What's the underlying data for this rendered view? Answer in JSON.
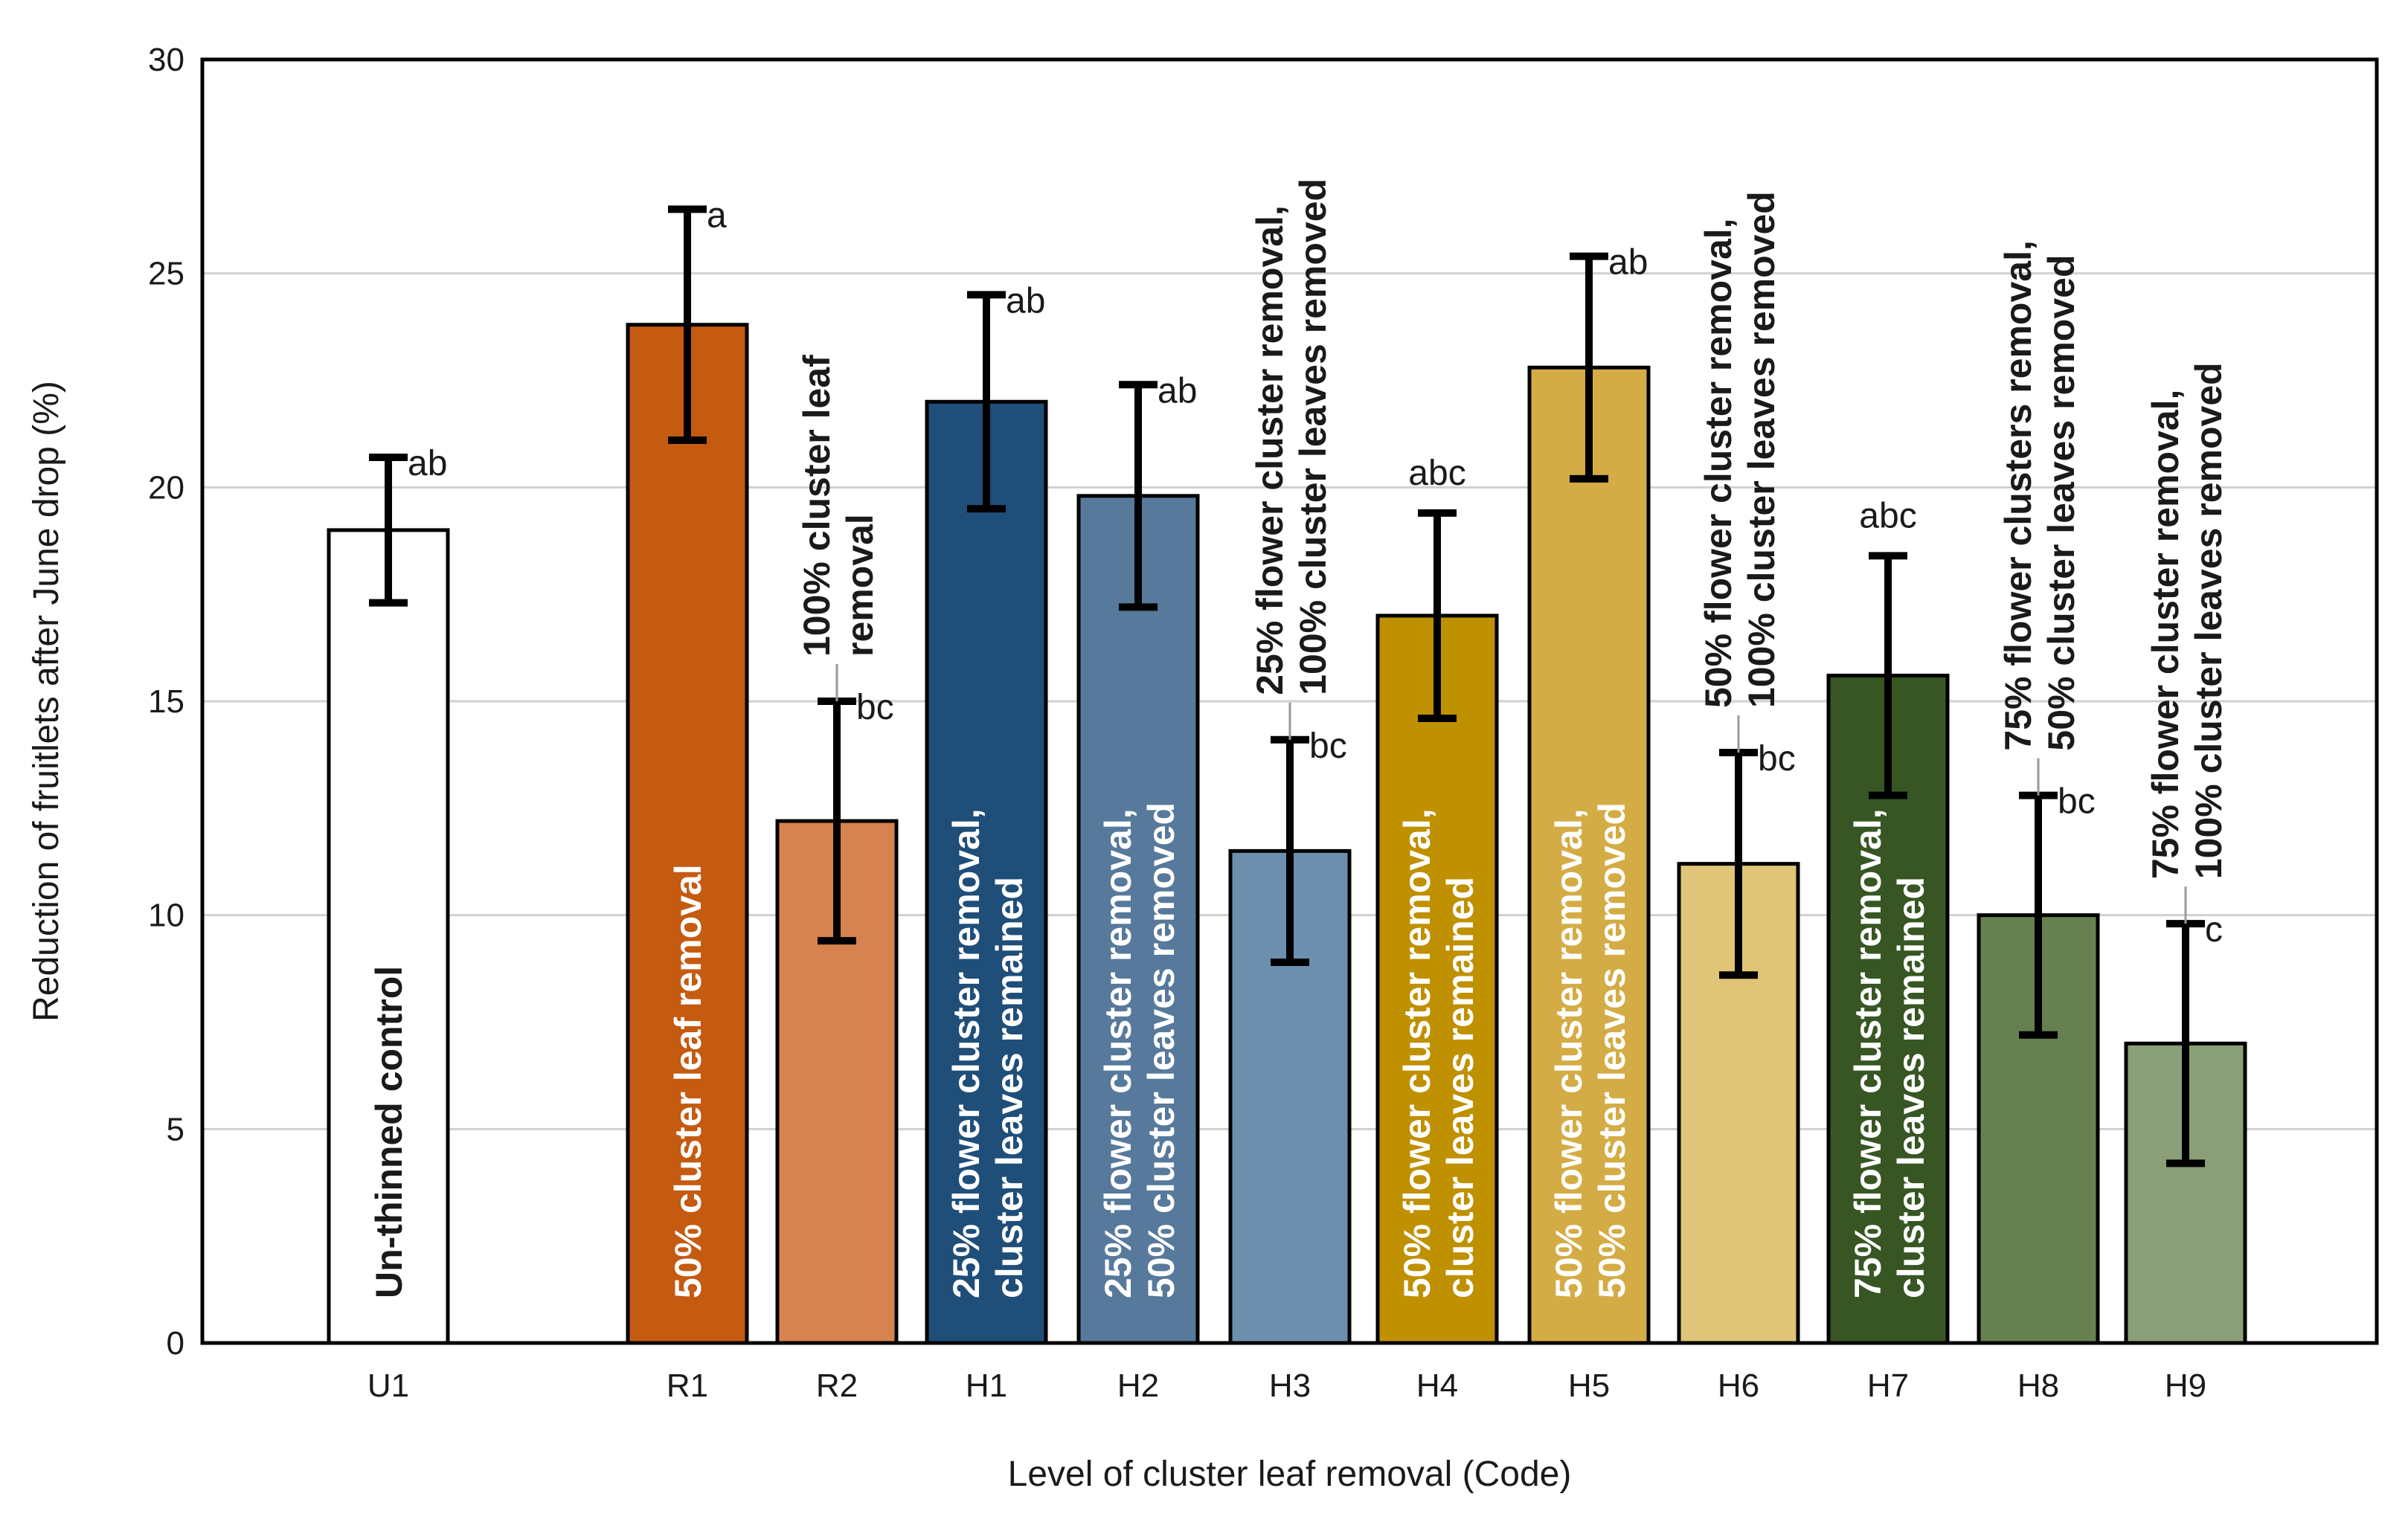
{
  "chart_data": {
    "type": "bar",
    "title": "",
    "xlabel": "Level of cluster leaf removal  (Code)",
    "ylabel": "Reduction of fruitlets after June drop (%)",
    "ylim": [
      0,
      30
    ],
    "yticks": [
      0,
      5,
      10,
      15,
      20,
      25,
      30
    ],
    "grid": true,
    "categories": [
      "U1",
      "R1",
      "R2",
      "H1",
      "H2",
      "H3",
      "H4",
      "H5",
      "H6",
      "H7",
      "H8",
      "H9"
    ],
    "values": [
      19.0,
      23.8,
      12.2,
      22.0,
      19.8,
      11.5,
      17.0,
      22.8,
      11.2,
      15.6,
      10.0,
      7.0
    ],
    "errors": [
      1.7,
      2.7,
      2.8,
      2.5,
      2.6,
      2.6,
      2.4,
      2.6,
      2.6,
      2.8,
      2.8,
      2.8
    ],
    "significance": [
      "ab",
      "a",
      "bc",
      "ab",
      "ab",
      "bc",
      "abc",
      "ab",
      "bc",
      "abc",
      "bc",
      "c"
    ],
    "treatments": [
      [
        "Un-thinned control"
      ],
      [
        "50% cluster leaf removal"
      ],
      [
        "100% cluster leaf",
        "removal"
      ],
      [
        "25% flower cluster removal,",
        "cluster leaves  remained"
      ],
      [
        "25% flower cluster removal,",
        "50% cluster leaves  removed"
      ],
      [
        "25% flower cluster removal,",
        "100% cluster leaves removed"
      ],
      [
        "50% flower cluster removal,",
        "cluster leaves remained"
      ],
      [
        "50% flower cluster removal,",
        "50% cluster leaves  removed"
      ],
      [
        "50% flower cluster removal,",
        "100% cluster leaves removed"
      ],
      [
        "75% flower cluster removal,",
        "cluster leaves  remained"
      ],
      [
        "75% flower clusters removal,",
        "50% cluster leaves removed"
      ],
      [
        "75% flower cluster removal,",
        "100% cluster leaves removed"
      ]
    ],
    "colors": [
      "#ffffff",
      "#c55a11",
      "#d6834f",
      "#1f4e79",
      "#57799b",
      "#6d8fae",
      "#bf9000",
      "#d4ac45",
      "#e0c478",
      "#375623",
      "#67804f",
      "#8a9e78"
    ],
    "label_colors": [
      "#1a1a1a",
      "#ffffff",
      "#1a1a1a",
      "#ffffff",
      "#ffffff",
      "#1a1a1a",
      "#ffffff",
      "#ffffff",
      "#1a1a1a",
      "#ffffff",
      "#1a1a1a",
      "#1a1a1a"
    ],
    "label_inside": [
      true,
      true,
      false,
      true,
      true,
      false,
      true,
      true,
      false,
      true,
      false,
      false
    ]
  }
}
